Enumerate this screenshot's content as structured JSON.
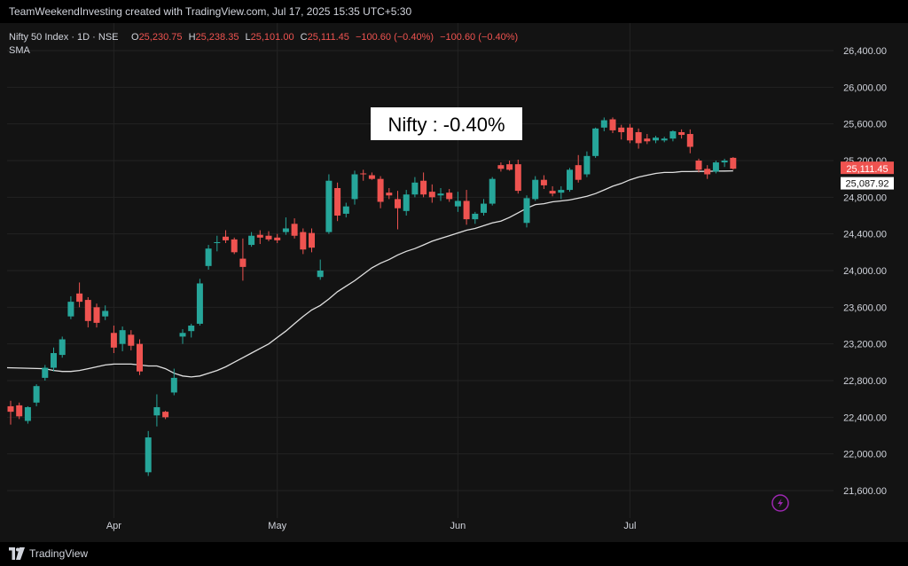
{
  "header": {
    "caption": "TeamWeekendInvesting created with TradingView.com, Jul 17, 2025 15:35 UTC+5:30"
  },
  "legend": {
    "symbol": "Nifty 50 Index · 1D · NSE",
    "o_label": "O",
    "o_value": "25,230.75",
    "h_label": "H",
    "h_value": "25,238.35",
    "l_label": "L",
    "l_value": "25,101.00",
    "c_label": "C",
    "c_value": "25,111.45",
    "change": "−100.60 (−0.40%)",
    "change2": "−100.60 (−0.40%)",
    "indicator": "SMA"
  },
  "annotation": {
    "text": "Nifty : -0.40%"
  },
  "price_tags": {
    "last_price": "25,111.45",
    "sma_value": "25,087.92"
  },
  "footer": {
    "brand": "TradingView"
  },
  "colors": {
    "up": "#26a69a",
    "down": "#ef5350",
    "sma": "#e0e0e0",
    "background": "#131313",
    "grid": "#232323",
    "text": "#d1d4dc"
  },
  "icons": {
    "replay": "lightning-icon",
    "brand": "tradingview-logo"
  },
  "chart_data": {
    "type": "candlestick",
    "symbol": "Nifty 50 Index",
    "interval": "1D",
    "exchange": "NSE",
    "ylim": [
      21300,
      26700
    ],
    "y_ticks": [
      21600,
      22000,
      22400,
      22800,
      23200,
      23600,
      24000,
      24400,
      24800,
      25200,
      25600,
      26000,
      26400
    ],
    "y_tick_labels": [
      "21,600.00",
      "22,000.00",
      "22,400.00",
      "22,800.00",
      "23,200.00",
      "23,600.00",
      "24,000.00",
      "24,400.00",
      "24,800.00",
      "25,200.00",
      "25,600.00",
      "26,000.00",
      "26,400.00"
    ],
    "x_tick_labels": [
      {
        "label": "Apr",
        "index": 12
      },
      {
        "label": "May",
        "index": 31
      },
      {
        "label": "Jun",
        "index": 52
      },
      {
        "label": "Jul",
        "index": 72
      }
    ],
    "candles": [
      {
        "o": 22520,
        "h": 22580,
        "l": 22320,
        "c": 22460
      },
      {
        "o": 22530,
        "h": 22560,
        "l": 22380,
        "c": 22410
      },
      {
        "o": 22360,
        "h": 22520,
        "l": 22330,
        "c": 22510
      },
      {
        "o": 22560,
        "h": 22760,
        "l": 22520,
        "c": 22740
      },
      {
        "o": 22830,
        "h": 22970,
        "l": 22800,
        "c": 22940
      },
      {
        "o": 22940,
        "h": 23160,
        "l": 22900,
        "c": 23100
      },
      {
        "o": 23080,
        "h": 23280,
        "l": 23050,
        "c": 23250
      },
      {
        "o": 23500,
        "h": 23720,
        "l": 23470,
        "c": 23660
      },
      {
        "o": 23750,
        "h": 23870,
        "l": 23600,
        "c": 23660
      },
      {
        "o": 23680,
        "h": 23710,
        "l": 23380,
        "c": 23450
      },
      {
        "o": 23600,
        "h": 23640,
        "l": 23380,
        "c": 23430
      },
      {
        "o": 23500,
        "h": 23620,
        "l": 23460,
        "c": 23560
      },
      {
        "o": 23320,
        "h": 23400,
        "l": 23100,
        "c": 23160
      },
      {
        "o": 23200,
        "h": 23390,
        "l": 23120,
        "c": 23350
      },
      {
        "o": 23300,
        "h": 23350,
        "l": 23130,
        "c": 23180
      },
      {
        "o": 23200,
        "h": 23250,
        "l": 22860,
        "c": 22900
      },
      {
        "o": 21800,
        "h": 22250,
        "l": 21760,
        "c": 22180
      },
      {
        "o": 22420,
        "h": 22650,
        "l": 22300,
        "c": 22510
      },
      {
        "o": 22460,
        "h": 22470,
        "l": 22380,
        "c": 22400
      },
      {
        "o": 22670,
        "h": 22930,
        "l": 22640,
        "c": 22830
      },
      {
        "o": 23280,
        "h": 23360,
        "l": 23200,
        "c": 23320
      },
      {
        "o": 23340,
        "h": 23420,
        "l": 23270,
        "c": 23400
      },
      {
        "o": 23420,
        "h": 23910,
        "l": 23400,
        "c": 23860
      },
      {
        "o": 24050,
        "h": 24280,
        "l": 24010,
        "c": 24240
      },
      {
        "o": 24300,
        "h": 24380,
        "l": 24210,
        "c": 24310
      },
      {
        "o": 24370,
        "h": 24440,
        "l": 24300,
        "c": 24330
      },
      {
        "o": 24340,
        "h": 24360,
        "l": 24180,
        "c": 24200
      },
      {
        "o": 24130,
        "h": 24350,
        "l": 23890,
        "c": 24040
      },
      {
        "o": 24280,
        "h": 24420,
        "l": 24260,
        "c": 24380
      },
      {
        "o": 24390,
        "h": 24440,
        "l": 24290,
        "c": 24360
      },
      {
        "o": 24380,
        "h": 24430,
        "l": 24320,
        "c": 24340
      },
      {
        "o": 24360,
        "h": 24400,
        "l": 24300,
        "c": 24330
      },
      {
        "o": 24420,
        "h": 24580,
        "l": 24390,
        "c": 24460
      },
      {
        "o": 24510,
        "h": 24570,
        "l": 24350,
        "c": 24380
      },
      {
        "o": 24420,
        "h": 24460,
        "l": 24180,
        "c": 24230
      },
      {
        "o": 24410,
        "h": 24460,
        "l": 24200,
        "c": 24250
      },
      {
        "o": 23930,
        "h": 24120,
        "l": 23900,
        "c": 24000
      },
      {
        "o": 24420,
        "h": 25050,
        "l": 24400,
        "c": 24980
      },
      {
        "o": 24900,
        "h": 24960,
        "l": 24540,
        "c": 24600
      },
      {
        "o": 24620,
        "h": 24740,
        "l": 24580,
        "c": 24700
      },
      {
        "o": 24780,
        "h": 25090,
        "l": 24720,
        "c": 25050
      },
      {
        "o": 25060,
        "h": 25100,
        "l": 24980,
        "c": 25050
      },
      {
        "o": 25040,
        "h": 25070,
        "l": 24990,
        "c": 25000
      },
      {
        "o": 25000,
        "h": 25030,
        "l": 24680,
        "c": 24750
      },
      {
        "o": 24850,
        "h": 24900,
        "l": 24780,
        "c": 24820
      },
      {
        "o": 24780,
        "h": 24870,
        "l": 24450,
        "c": 24680
      },
      {
        "o": 24650,
        "h": 24880,
        "l": 24600,
        "c": 24830
      },
      {
        "o": 24830,
        "h": 25020,
        "l": 24800,
        "c": 24960
      },
      {
        "o": 24980,
        "h": 25070,
        "l": 24800,
        "c": 24830
      },
      {
        "o": 24860,
        "h": 24940,
        "l": 24740,
        "c": 24800
      },
      {
        "o": 24820,
        "h": 24900,
        "l": 24760,
        "c": 24840
      },
      {
        "o": 24850,
        "h": 24890,
        "l": 24750,
        "c": 24780
      },
      {
        "o": 24700,
        "h": 24860,
        "l": 24640,
        "c": 24760
      },
      {
        "o": 24760,
        "h": 24880,
        "l": 24500,
        "c": 24560
      },
      {
        "o": 24560,
        "h": 24640,
        "l": 24510,
        "c": 24620
      },
      {
        "o": 24630,
        "h": 24780,
        "l": 24600,
        "c": 24730
      },
      {
        "o": 24730,
        "h": 25020,
        "l": 24710,
        "c": 25000
      },
      {
        "o": 25150,
        "h": 25180,
        "l": 25080,
        "c": 25110
      },
      {
        "o": 25160,
        "h": 25200,
        "l": 25090,
        "c": 25100
      },
      {
        "o": 25160,
        "h": 25210,
        "l": 24840,
        "c": 24870
      },
      {
        "o": 24520,
        "h": 24820,
        "l": 24470,
        "c": 24790
      },
      {
        "o": 24780,
        "h": 25030,
        "l": 24760,
        "c": 24990
      },
      {
        "o": 24990,
        "h": 25040,
        "l": 24890,
        "c": 24930
      },
      {
        "o": 24870,
        "h": 24920,
        "l": 24810,
        "c": 24840
      },
      {
        "o": 24850,
        "h": 24920,
        "l": 24780,
        "c": 24880
      },
      {
        "o": 24880,
        "h": 25120,
        "l": 24860,
        "c": 25100
      },
      {
        "o": 25150,
        "h": 25260,
        "l": 24960,
        "c": 24990
      },
      {
        "o": 25050,
        "h": 25300,
        "l": 25020,
        "c": 25250
      },
      {
        "o": 25250,
        "h": 25560,
        "l": 25230,
        "c": 25550
      },
      {
        "o": 25560,
        "h": 25670,
        "l": 25520,
        "c": 25640
      },
      {
        "o": 25650,
        "h": 25670,
        "l": 25500,
        "c": 25530
      },
      {
        "o": 25560,
        "h": 25590,
        "l": 25430,
        "c": 25510
      },
      {
        "o": 25560,
        "h": 25600,
        "l": 25390,
        "c": 25420
      },
      {
        "o": 25510,
        "h": 25550,
        "l": 25330,
        "c": 25390
      },
      {
        "o": 25440,
        "h": 25490,
        "l": 25380,
        "c": 25410
      },
      {
        "o": 25420,
        "h": 25470,
        "l": 25390,
        "c": 25450
      },
      {
        "o": 25420,
        "h": 25460,
        "l": 25400,
        "c": 25440
      },
      {
        "o": 25440,
        "h": 25530,
        "l": 25410,
        "c": 25520
      },
      {
        "o": 25510,
        "h": 25540,
        "l": 25440,
        "c": 25480
      },
      {
        "o": 25490,
        "h": 25540,
        "l": 25280,
        "c": 25350
      },
      {
        "o": 25200,
        "h": 25220,
        "l": 25070,
        "c": 25100
      },
      {
        "o": 25110,
        "h": 25150,
        "l": 25000,
        "c": 25050
      },
      {
        "o": 25080,
        "h": 25200,
        "l": 25060,
        "c": 25180
      },
      {
        "o": 25180,
        "h": 25220,
        "l": 25130,
        "c": 25200
      },
      {
        "o": 25230,
        "h": 25238,
        "l": 25101,
        "c": 25111
      }
    ],
    "sma": [
      22940,
      22930,
      22910,
      22900,
      22900,
      22910,
      22930,
      22950,
      22970,
      22980,
      22980,
      22980,
      22970,
      22960,
      22960,
      22930,
      22880,
      22850,
      22840,
      22850,
      22880,
      22910,
      22950,
      23000,
      23050,
      23100,
      23150,
      23200,
      23270,
      23340,
      23420,
      23500,
      23570,
      23620,
      23690,
      23770,
      23830,
      23890,
      23960,
      24030,
      24080,
      24120,
      24170,
      24210,
      24240,
      24280,
      24320,
      24350,
      24380,
      24410,
      24440,
      24460,
      24490,
      24520,
      24540,
      24580,
      24630,
      24680,
      24720,
      24730,
      24750,
      24760,
      24770,
      24790,
      24810,
      24840,
      24880,
      24920,
      24950,
      24990,
      25020,
      25040,
      25060,
      25070,
      25070,
      25080,
      25080,
      25082,
      25083,
      25085,
      25086,
      25087.92
    ],
    "last_price": 25111.45,
    "sma_last": 25087.92
  }
}
